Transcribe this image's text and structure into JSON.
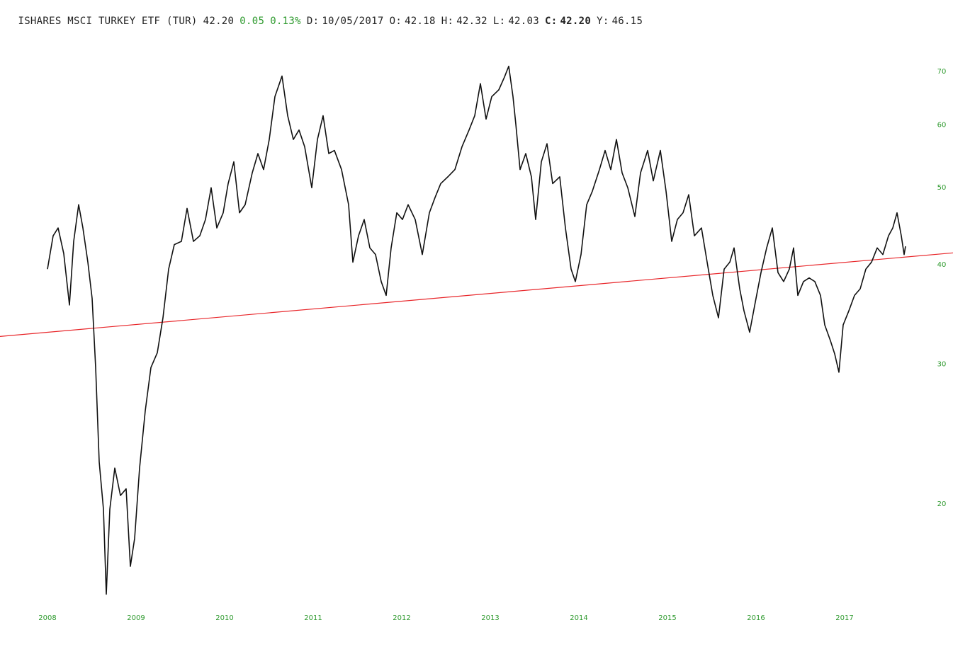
{
  "chart_data": {
    "type": "line",
    "title": "ISHARES MSCI TURKEY ETF (TUR)",
    "price": "42.20",
    "change": "0.05",
    "change_pct": "0.13%",
    "change_color": "#2e9a2e",
    "quote": [
      {
        "label": "D:",
        "value": "10/05/2017"
      },
      {
        "label": "O:",
        "value": "42.18"
      },
      {
        "label": "H:",
        "value": "42.32"
      },
      {
        "label": "L:",
        "value": "42.03"
      },
      {
        "label": "C:",
        "value": "42.20",
        "bold": true
      },
      {
        "label": "Y:",
        "value": "46.15"
      }
    ],
    "log_y": true,
    "axis_color": "#2e9a2e",
    "xlim": [
      2007.464,
      2018.224
    ],
    "xticks": [
      2008,
      2009,
      2010,
      2011,
      2012,
      2013,
      2014,
      2015,
      2016,
      2017
    ],
    "ylim": [
      14.5,
      80
    ],
    "yticks": [
      20,
      30,
      40,
      50,
      60,
      70
    ],
    "series": [
      {
        "color": "#111111",
        "x": [
          2008.0,
          2008.064,
          2008.12,
          2008.184,
          2008.248,
          2008.296,
          2008.352,
          2008.4,
          2008.456,
          2008.504,
          2008.544,
          2008.584,
          2008.632,
          2008.664,
          2008.704,
          2008.76,
          2008.824,
          2008.888,
          2008.936,
          2008.984,
          2009.04,
          2009.104,
          2009.168,
          2009.24,
          2009.304,
          2009.368,
          2009.432,
          2009.512,
          2009.576,
          2009.648,
          2009.72,
          2009.784,
          2009.848,
          2009.912,
          2009.984,
          2010.04,
          2010.104,
          2010.168,
          2010.232,
          2010.312,
          2010.376,
          2010.44,
          2010.504,
          2010.568,
          2010.648,
          2010.712,
          2010.776,
          2010.84,
          2010.904,
          2010.984,
          2011.048,
          2011.112,
          2011.176,
          2011.24,
          2011.32,
          2011.4,
          2011.448,
          2011.512,
          2011.576,
          2011.64,
          2011.704,
          2011.768,
          2011.824,
          2011.88,
          2011.944,
          2012.008,
          2012.072,
          2012.152,
          2012.232,
          2012.312,
          2012.376,
          2012.44,
          2012.52,
          2012.6,
          2012.68,
          2012.76,
          2012.824,
          2012.888,
          2012.952,
          2013.016,
          2013.096,
          2013.16,
          2013.208,
          2013.256,
          2013.288,
          2013.336,
          2013.4,
          2013.464,
          2013.512,
          2013.576,
          2013.64,
          2013.704,
          2013.784,
          2013.848,
          2013.912,
          2013.96,
          2014.024,
          2014.088,
          2014.152,
          2014.232,
          2014.296,
          2014.36,
          2014.424,
          2014.488,
          2014.552,
          2014.632,
          2014.696,
          2014.776,
          2014.84,
          2014.92,
          2014.984,
          2015.048,
          2015.112,
          2015.176,
          2015.24,
          2015.304,
          2015.384,
          2015.448,
          2015.512,
          2015.576,
          2015.64,
          2015.704,
          2015.752,
          2015.816,
          2015.864,
          2015.928,
          2015.992,
          2016.056,
          2016.12,
          2016.184,
          2016.248,
          2016.312,
          2016.376,
          2016.424,
          2016.472,
          2016.536,
          2016.6,
          2016.664,
          2016.728,
          2016.776,
          2016.84,
          2016.888,
          2016.936,
          2016.984,
          2017.048,
          2017.112,
          2017.176,
          2017.24,
          2017.304,
          2017.368,
          2017.432,
          2017.496,
          2017.544,
          2017.592,
          2017.64,
          2017.672,
          2017.688
        ],
        "values": [
          39.5,
          43.5,
          44.5,
          41.3,
          35.6,
          42.8,
          47.6,
          44.5,
          40.3,
          36.3,
          29.7,
          22.6,
          19.7,
          15.4,
          19.7,
          22.2,
          20.5,
          20.9,
          16.7,
          18.1,
          22.2,
          26.2,
          29.7,
          31.0,
          34.3,
          39.5,
          42.4,
          42.8,
          47.1,
          42.8,
          43.5,
          45.6,
          50.0,
          44.5,
          46.5,
          50.6,
          53.9,
          46.5,
          47.6,
          52.2,
          55.2,
          52.7,
          57.5,
          65.1,
          69.1,
          61.6,
          57.5,
          59.1,
          56.3,
          50.0,
          57.5,
          61.6,
          55.2,
          55.7,
          52.7,
          47.6,
          40.3,
          43.5,
          45.6,
          42.0,
          41.2,
          38.1,
          36.6,
          42.0,
          46.5,
          45.6,
          47.6,
          45.6,
          41.2,
          46.5,
          48.6,
          50.6,
          51.6,
          52.7,
          56.3,
          59.1,
          61.6,
          67.6,
          61.0,
          65.1,
          66.4,
          68.9,
          71.1,
          65.1,
          60.1,
          52.7,
          55.2,
          51.6,
          45.6,
          53.9,
          56.8,
          50.6,
          51.6,
          44.5,
          39.5,
          38.1,
          41.2,
          47.6,
          49.5,
          52.7,
          55.7,
          52.7,
          57.5,
          52.2,
          50.0,
          46.0,
          52.2,
          55.7,
          51.0,
          55.7,
          49.5,
          42.8,
          45.6,
          46.5,
          49.0,
          43.5,
          44.5,
          40.3,
          36.6,
          34.3,
          39.5,
          40.3,
          42.0,
          37.3,
          35.0,
          32.9,
          35.9,
          39.1,
          42.0,
          44.5,
          39.1,
          38.1,
          39.5,
          42.0,
          36.6,
          38.1,
          38.5,
          38.1,
          36.6,
          33.6,
          32.1,
          30.9,
          29.3,
          33.6,
          35.0,
          36.6,
          37.3,
          39.5,
          40.3,
          42.0,
          41.2,
          43.5,
          44.5,
          46.5,
          43.5,
          41.2,
          42.2
        ]
      }
    ],
    "trendline": {
      "color": "#e8262a",
      "x": [
        2007.464,
        2018.224
      ],
      "values": [
        32.5,
        41.4
      ]
    }
  }
}
